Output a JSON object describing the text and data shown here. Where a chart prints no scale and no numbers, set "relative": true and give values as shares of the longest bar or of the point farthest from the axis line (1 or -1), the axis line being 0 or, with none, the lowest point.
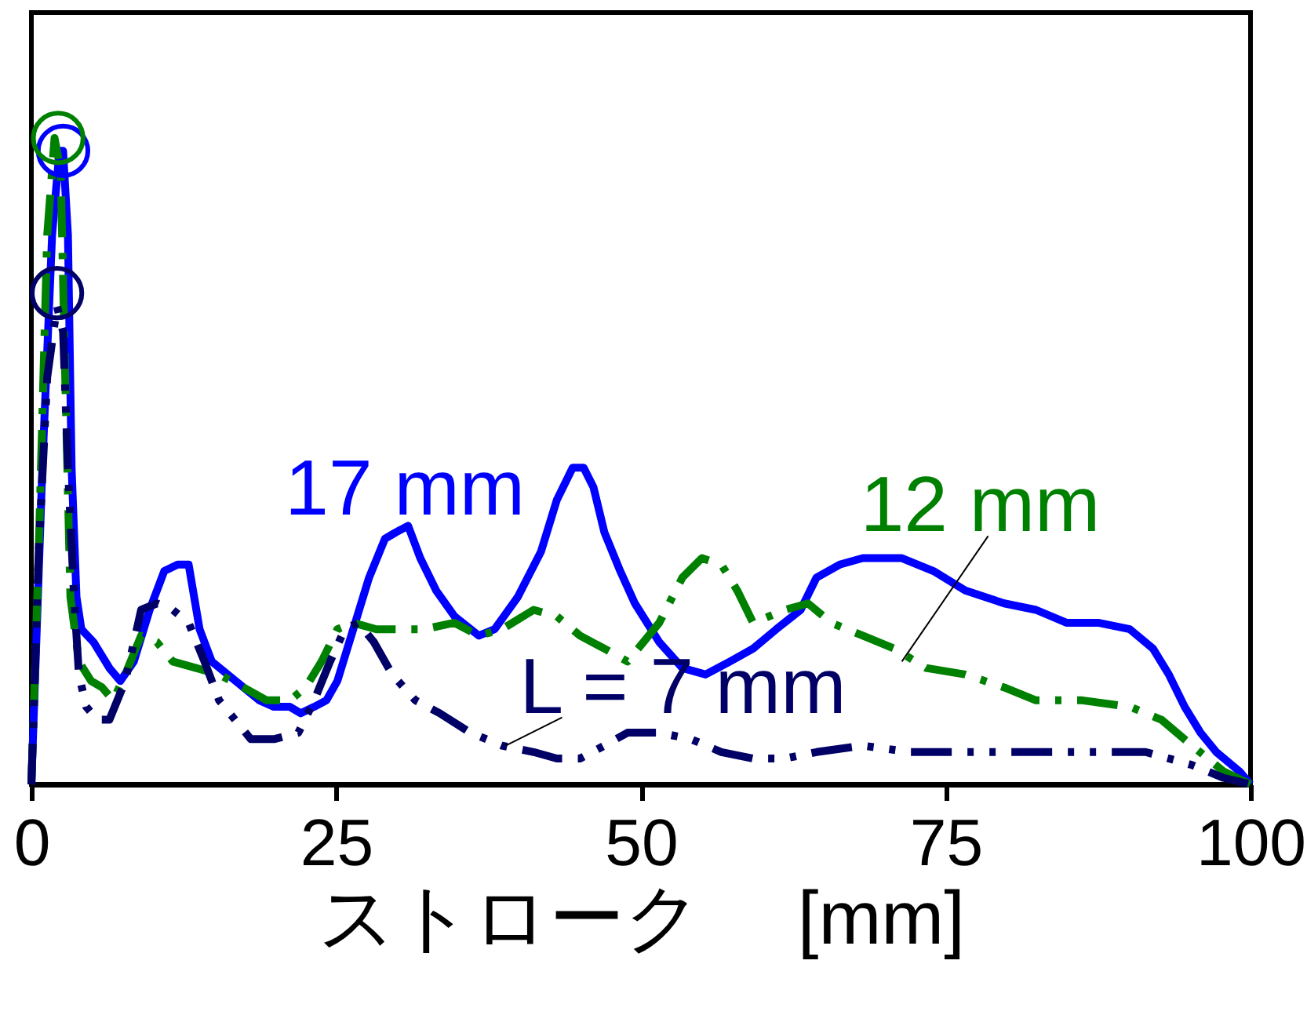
{
  "chart_data": {
    "type": "line",
    "relative": true,
    "xlabel": "ストローク　 [mm]",
    "xlim": [
      0,
      100
    ],
    "xticks": [
      0,
      25,
      50,
      75,
      100
    ],
    "grid": false,
    "series": [
      {
        "color": "#0000ff",
        "line_style": "solid",
        "x": [
          0,
          0.9,
          1.7,
          2.3,
          2.6,
          3.0,
          3.3,
          3.7,
          4.1,
          5.1,
          6.4,
          7.3,
          8.4,
          9.7,
          10.9,
          12.0,
          12.9,
          13.8,
          14.8,
          16.1,
          17.4,
          18.7,
          19.9,
          21.2,
          22.1,
          23.2,
          24.2,
          25.1,
          26.4,
          27.7,
          29.0,
          29.9,
          30.9,
          31.9,
          33.2,
          34.7,
          36.7,
          38.0,
          39.9,
          41.8,
          43.1,
          44.4,
          45.3,
          46.1,
          47.0,
          48.3,
          49.5,
          51.5,
          53.4,
          55.3,
          57.3,
          59.2,
          61.1,
          63.1,
          64.4,
          66.3,
          68.2,
          70.1,
          71.4,
          74.0,
          76.6,
          79.8,
          82.4,
          84.9,
          87.5,
          90.1,
          92.0,
          93.3,
          94.6,
          95.9,
          97.2,
          99.1,
          100
        ],
        "values": [
          0,
          0.49,
          0.85,
          0.98,
          0.98,
          0.85,
          0.49,
          0.29,
          0.24,
          0.22,
          0.18,
          0.16,
          0.19,
          0.27,
          0.33,
          0.34,
          0.34,
          0.24,
          0.19,
          0.17,
          0.15,
          0.13,
          0.12,
          0.12,
          0.11,
          0.12,
          0.13,
          0.16,
          0.24,
          0.32,
          0.38,
          0.39,
          0.4,
          0.35,
          0.3,
          0.26,
          0.23,
          0.24,
          0.29,
          0.36,
          0.44,
          0.49,
          0.49,
          0.46,
          0.39,
          0.33,
          0.28,
          0.22,
          0.18,
          0.17,
          0.19,
          0.21,
          0.24,
          0.27,
          0.32,
          0.34,
          0.35,
          0.35,
          0.35,
          0.33,
          0.3,
          0.28,
          0.27,
          0.25,
          0.25,
          0.24,
          0.21,
          0.17,
          0.12,
          0.08,
          0.05,
          0.02,
          0
        ]
      },
      {
        "color": "#008000",
        "line_style": "dashdot",
        "x": [
          0,
          0.6,
          1.3,
          1.9,
          2.4,
          2.8,
          3.2,
          3.9,
          4.9,
          5.8,
          6.7,
          7.7,
          9.0,
          10.3,
          11.6,
          13.5,
          15.4,
          17.4,
          19.3,
          21.2,
          22.5,
          23.8,
          25.1,
          26.4,
          28.3,
          30.2,
          32.2,
          34.7,
          36.7,
          38.6,
          41.2,
          43.1,
          45.0,
          47.0,
          48.9,
          51.5,
          53.4,
          55.0,
          56.6,
          57.9,
          59.2,
          61.8,
          63.7,
          65.6,
          68.2,
          70.8,
          73.4,
          76.6,
          79.8,
          82.4,
          86.2,
          90.1,
          92.7,
          95.2,
          97.8,
          100
        ],
        "values": [
          0,
          0.36,
          0.85,
          1.0,
          0.95,
          0.61,
          0.29,
          0.19,
          0.16,
          0.15,
          0.13,
          0.17,
          0.23,
          0.22,
          0.19,
          0.18,
          0.17,
          0.15,
          0.13,
          0.13,
          0.15,
          0.19,
          0.24,
          0.25,
          0.24,
          0.24,
          0.24,
          0.25,
          0.23,
          0.24,
          0.27,
          0.26,
          0.23,
          0.21,
          0.19,
          0.25,
          0.32,
          0.35,
          0.34,
          0.3,
          0.25,
          0.27,
          0.28,
          0.25,
          0.23,
          0.21,
          0.18,
          0.17,
          0.15,
          0.13,
          0.13,
          0.12,
          0.1,
          0.06,
          0.02,
          0
        ]
      },
      {
        "color": "#000066",
        "line_style": "dashdotdot",
        "x": [
          0,
          0.6,
          1.3,
          2.1,
          2.6,
          3.0,
          3.5,
          3.9,
          4.5,
          5.4,
          6.4,
          7.7,
          9.0,
          10.3,
          11.6,
          12.9,
          14.2,
          15.4,
          16.7,
          18.0,
          19.9,
          21.9,
          23.2,
          24.5,
          25.7,
          26.8,
          28.1,
          29.6,
          31.5,
          33.5,
          36.0,
          38.6,
          41.2,
          43.1,
          45.0,
          47.0,
          48.9,
          51.5,
          54.1,
          56.6,
          59.2,
          61.8,
          64.4,
          68.2,
          72.1,
          77.2,
          82.4,
          87.5,
          91.4,
          95.2,
          97.8,
          100
        ],
        "values": [
          0,
          0.36,
          0.63,
          0.74,
          0.7,
          0.49,
          0.29,
          0.17,
          0.12,
          0.1,
          0.1,
          0.16,
          0.27,
          0.28,
          0.27,
          0.25,
          0.19,
          0.13,
          0.1,
          0.07,
          0.07,
          0.08,
          0.13,
          0.19,
          0.24,
          0.25,
          0.22,
          0.17,
          0.13,
          0.11,
          0.08,
          0.06,
          0.05,
          0.04,
          0.04,
          0.06,
          0.08,
          0.08,
          0.07,
          0.05,
          0.04,
          0.04,
          0.05,
          0.06,
          0.05,
          0.05,
          0.05,
          0.05,
          0.05,
          0.03,
          0.01,
          0
        ]
      },
      {
        "type": "scatter",
        "marker": "circle",
        "color": "#0000ff",
        "x": [
          2.6
        ],
        "values": [
          0.98
        ]
      },
      {
        "type": "scatter",
        "marker": "circle",
        "color": "#008000",
        "x": [
          2.2
        ],
        "values": [
          1.0
        ]
      },
      {
        "type": "scatter",
        "marker": "circle",
        "color": "#000066",
        "x": [
          2.1
        ],
        "values": [
          0.76
        ]
      }
    ],
    "annotations": [
      {
        "text": "17 mm",
        "x": 30.9,
        "y": 0.4
      },
      {
        "text": "12 mm",
        "x": 71.4,
        "y": 0.19
      },
      {
        "text": "L = 7 mm",
        "x": 38.9,
        "y": 0.06
      }
    ]
  }
}
